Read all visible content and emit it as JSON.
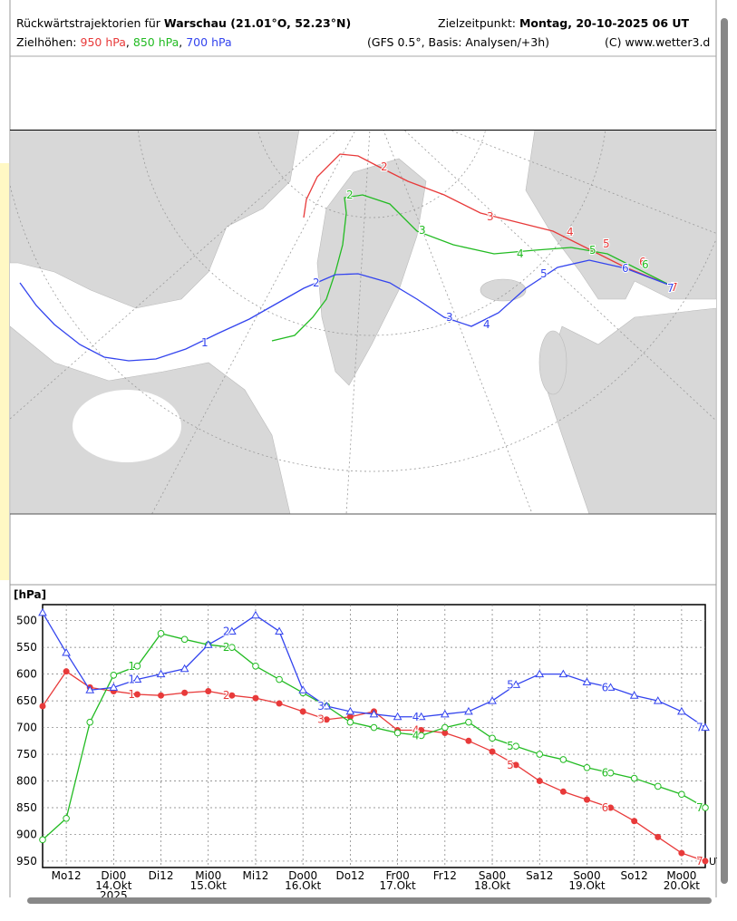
{
  "header": {
    "title_prefix": "Rückwärtstrajektorien für",
    "title_place": "Warschau (21.01°O, 52.23°N)",
    "target_prefix": "Zielzeitpunkt:",
    "target_time": "Montag, 20-10-2025  06 UT",
    "levels_prefix": "Zielhöhen:",
    "separator": ",",
    "model": "(GFS 0.5°, Basis: Analysen/+3h)",
    "copyright": "(C) www.wetter3.d"
  },
  "chart_data": {
    "type": "line",
    "y_label": "[hPa]",
    "x": [
      0,
      6,
      12,
      18,
      24,
      30,
      36,
      42,
      48,
      54,
      60,
      66,
      72,
      78,
      84,
      90,
      96,
      102,
      108,
      114,
      120,
      126,
      132,
      138,
      144,
      150,
      156,
      162,
      168
    ],
    "xlim": [
      0,
      168
    ],
    "xticks": [
      {
        "value": 6,
        "label": "Mo12"
      },
      {
        "value": 18,
        "label": "Di00"
      },
      {
        "value": 30,
        "label": "Di12"
      },
      {
        "value": 42,
        "label": "Mi00"
      },
      {
        "value": 54,
        "label": "Mi12"
      },
      {
        "value": 66,
        "label": "Do00"
      },
      {
        "value": 78,
        "label": "Do12"
      },
      {
        "value": 90,
        "label": "Fr00"
      },
      {
        "value": 102,
        "label": "Fr12"
      },
      {
        "value": 114,
        "label": "Sa00"
      },
      {
        "value": 126,
        "label": "Sa12"
      },
      {
        "value": 138,
        "label": "So00"
      },
      {
        "value": 150,
        "label": "So12"
      },
      {
        "value": 162,
        "label": "Mo00"
      }
    ],
    "date_ticks": [
      {
        "value": 18,
        "label": "14.Okt"
      },
      {
        "value": 42,
        "label": "15.Okt"
      },
      {
        "value": 66,
        "label": "16.Okt"
      },
      {
        "value": 90,
        "label": "17.Okt"
      },
      {
        "value": 114,
        "label": "18.Okt"
      },
      {
        "value": 138,
        "label": "19.Okt"
      },
      {
        "value": 162,
        "label": "20.Okt"
      }
    ],
    "year_label": "2025",
    "time_unit": "UT",
    "ylim": [
      470,
      962
    ],
    "y_inverted": true,
    "yticks": [
      500,
      550,
      600,
      650,
      700,
      750,
      800,
      850,
      900,
      950
    ],
    "grid": true,
    "series": [
      {
        "name": "950 hPa",
        "color": "#e83a3a",
        "marker": "dot",
        "values": [
          660,
          595,
          625,
          632,
          638,
          640,
          635,
          632,
          640,
          645,
          655,
          670,
          685,
          680,
          670,
          705,
          705,
          710,
          725,
          745,
          770,
          800,
          820,
          835,
          850,
          875,
          905,
          935,
          950
        ]
      },
      {
        "name": "850 hPa",
        "color": "#22bb22",
        "marker": "circle",
        "values": [
          910,
          870,
          690,
          602,
          585,
          524,
          535,
          545,
          550,
          585,
          610,
          635,
          660,
          690,
          700,
          710,
          715,
          700,
          690,
          720,
          735,
          750,
          760,
          775,
          785,
          795,
          810,
          825,
          850
        ]
      },
      {
        "name": "700 hPa",
        "color": "#3344ee",
        "marker": "triangle",
        "values": [
          485,
          560,
          630,
          625,
          610,
          600,
          590,
          545,
          520,
          490,
          520,
          630,
          660,
          670,
          675,
          680,
          680,
          675,
          670,
          650,
          620,
          600,
          600,
          615,
          625,
          640,
          650,
          670,
          700
        ]
      }
    ],
    "curve_labels": {
      "text": [
        "1",
        "2",
        "3",
        "4",
        "5",
        "6",
        "7"
      ],
      "x": [
        24,
        48,
        72,
        96,
        120,
        144,
        168
      ]
    }
  }
}
